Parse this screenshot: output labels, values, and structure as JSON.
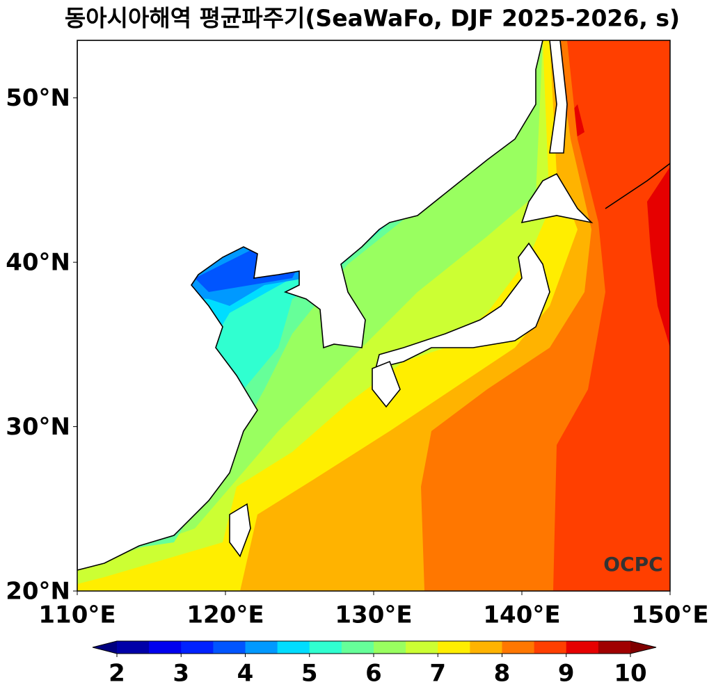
{
  "chart_data": {
    "type": "map",
    "title": "동아시아해역 평균파주기(SeaWaFo, DJF 2025-2026, s)",
    "xlim": [
      110,
      150
    ],
    "ylim": [
      20,
      53.5
    ],
    "xticks": [
      {
        "value": 110,
        "label": "110°E"
      },
      {
        "value": 120,
        "label": "120°E"
      },
      {
        "value": 130,
        "label": "130°E"
      },
      {
        "value": 140,
        "label": "140°E"
      },
      {
        "value": 150,
        "label": "150°E"
      }
    ],
    "yticks": [
      {
        "value": 20,
        "label": "20°N"
      },
      {
        "value": 30,
        "label": "30°N"
      },
      {
        "value": 40,
        "label": "40°N"
      },
      {
        "value": 50,
        "label": "50°N"
      }
    ],
    "colorbar": {
      "levels": [
        2,
        2.5,
        3,
        3.5,
        4,
        4.5,
        5,
        5.5,
        6,
        6.5,
        7,
        7.5,
        8,
        8.5,
        9,
        9.5,
        10
      ],
      "ticks": [
        2,
        3,
        4,
        5,
        6,
        7,
        8,
        9,
        10
      ],
      "colors": [
        "#0000a8",
        "#0000ee",
        "#0022ff",
        "#0055ff",
        "#0099ff",
        "#00ddff",
        "#30ffd0",
        "#66ff99",
        "#99ff60",
        "#ccff33",
        "#ffee00",
        "#ffb300",
        "#ff7700",
        "#ff3f00",
        "#e60000",
        "#a00000"
      ],
      "under_color": "#00007f",
      "over_color": "#7f0000"
    },
    "logo": "OCPC"
  }
}
